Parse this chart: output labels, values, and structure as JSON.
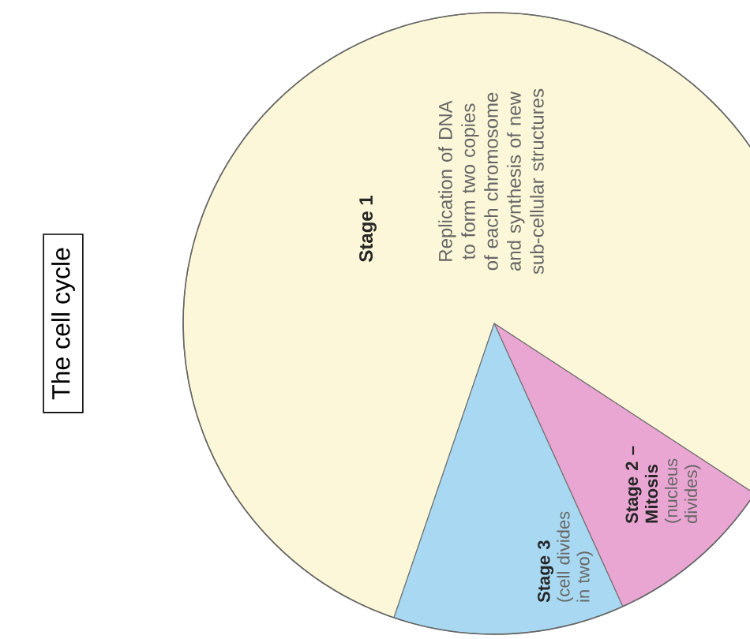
{
  "chart_data": {
    "type": "pie",
    "title": "The cell cycle",
    "categories": [
      "Stage 1",
      "Stage 2 –\nMitosis",
      "Stage 3"
    ],
    "values": [
      79,
      9,
      12
    ],
    "colors": [
      "#fbf7d8",
      "#eaa6d3",
      "#a9d9f2"
    ],
    "annotations": [
      "Replication of DNA to form two copies of each chromosome and synthesis of new sub-cellular structures",
      "(nucleus divides)",
      "(cell divides in two)"
    ]
  }
}
